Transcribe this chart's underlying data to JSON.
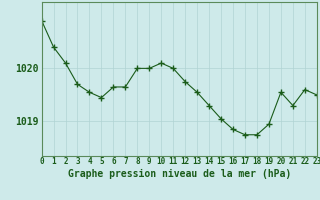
{
  "x": [
    0,
    1,
    2,
    3,
    4,
    5,
    6,
    7,
    8,
    9,
    10,
    11,
    12,
    13,
    14,
    15,
    16,
    17,
    18,
    19,
    20,
    21,
    22,
    23
  ],
  "y": [
    1020.9,
    1020.4,
    1020.1,
    1019.7,
    1019.55,
    1019.45,
    1019.65,
    1019.65,
    1020.0,
    1020.0,
    1020.1,
    1020.0,
    1019.75,
    1019.55,
    1019.3,
    1019.05,
    1018.85,
    1018.75,
    1018.75,
    1018.95,
    1019.55,
    1019.3,
    1019.6,
    1019.5
  ],
  "line_color": "#1a5c1a",
  "marker_color": "#1a5c1a",
  "bg_color": "#ceeaea",
  "grid_color": "#b0d4d4",
  "xlabel": "Graphe pression niveau de la mer (hPa)",
  "ylabel_ticks": [
    1019,
    1020
  ],
  "xlim": [
    0,
    23
  ],
  "ylim": [
    1018.35,
    1021.25
  ],
  "tick_labels": [
    "0",
    "1",
    "2",
    "3",
    "4",
    "5",
    "6",
    "7",
    "8",
    "9",
    "10",
    "11",
    "12",
    "13",
    "14",
    "15",
    "16",
    "17",
    "18",
    "19",
    "20",
    "21",
    "22",
    "23"
  ],
  "font_color": "#1a5c1a",
  "border_color": "#5a8a5a"
}
